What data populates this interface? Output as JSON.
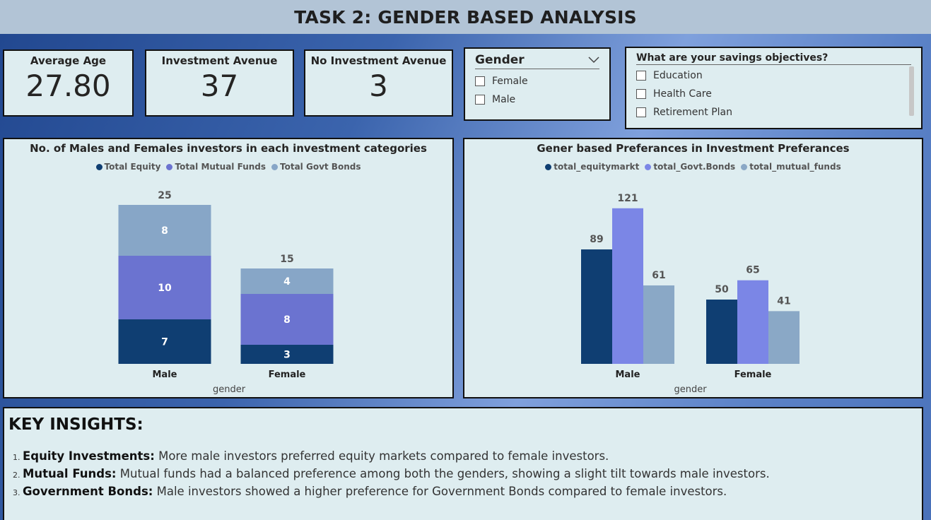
{
  "header": {
    "title": "TASK 2: GENDER BASED ANALYSIS"
  },
  "cards": [
    {
      "label": "Average Age",
      "value": "27.80"
    },
    {
      "label": "Investment Avenue",
      "value": "37"
    },
    {
      "label": "No Investment Avenue",
      "value": "3"
    }
  ],
  "gender_slicer": {
    "title": "Gender",
    "options": [
      "Female",
      "Male"
    ]
  },
  "objectives_slicer": {
    "title": "What are your savings objectives?",
    "options": [
      "Education",
      "Health Care",
      "Retirement Plan"
    ]
  },
  "chart_data": [
    {
      "type": "bar",
      "stacked": true,
      "title": "No. of Males and Females investors in each investment categories",
      "xlabel": "gender",
      "categories": [
        "Male",
        "Female"
      ],
      "series": [
        {
          "name": "Total Equity",
          "values": [
            7,
            3
          ],
          "color": "#0f3e72"
        },
        {
          "name": "Total Mutual Funds",
          "values": [
            10,
            8
          ],
          "color": "#6b73d0"
        },
        {
          "name": "Total Govt Bonds",
          "values": [
            8,
            4
          ],
          "color": "#87a6c7"
        }
      ],
      "totals": [
        25,
        15
      ],
      "legend": "top-center"
    },
    {
      "type": "bar",
      "stacked": false,
      "title": "Gener based Preferances in Investment Preferances",
      "xlabel": "gender",
      "categories": [
        "Male",
        "Female"
      ],
      "series": [
        {
          "name": "total_equitymarkt",
          "values": [
            89,
            50
          ],
          "color": "#0f3e72"
        },
        {
          "name": "total_Govt.Bonds",
          "values": [
            121,
            65
          ],
          "color": "#7b86e6"
        },
        {
          "name": "total_mutual_funds",
          "values": [
            61,
            41
          ],
          "color": "#8aa8c6"
        }
      ],
      "legend": "top-center"
    }
  ],
  "insights": {
    "title": "KEY INSIGHTS:",
    "items": [
      {
        "bold": "Equity Investments:",
        "text": " More male investors preferred equity markets compared to female investors."
      },
      {
        "bold": "Mutual Funds:",
        "text": " Mutual funds had a balanced preference among both the genders, showing a slight tilt towards male investors."
      },
      {
        "bold": "Government Bonds:",
        "text": " Male investors showed a higher preference for Government Bonds compared to female investors."
      }
    ]
  }
}
